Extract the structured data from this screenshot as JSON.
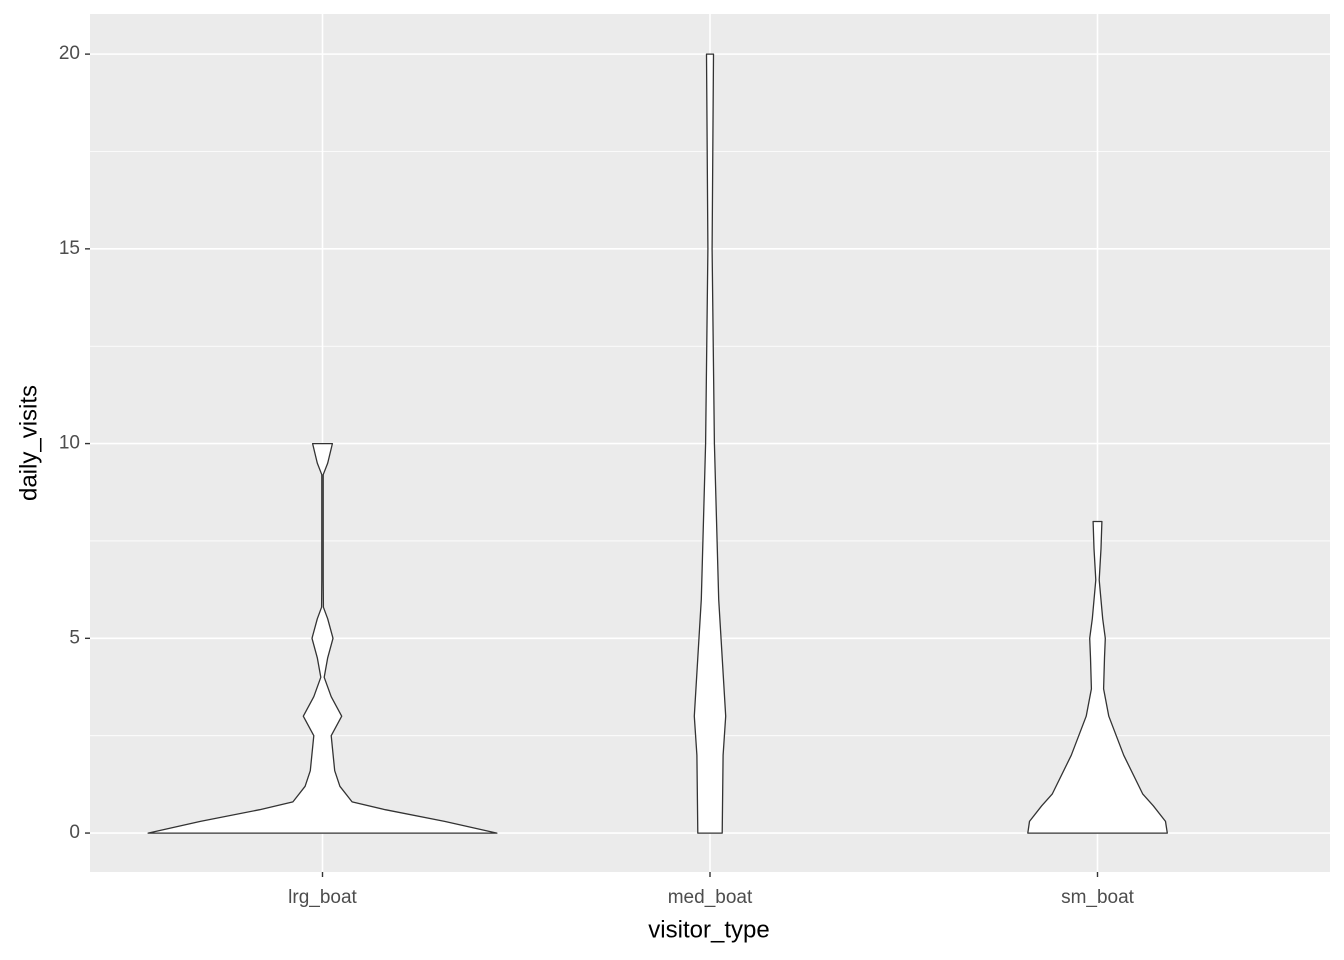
{
  "chart_data": {
    "type": "violin",
    "x_label": "visitor_type",
    "y_label": "daily_visits",
    "categories": [
      "lrg_boat",
      "med_boat",
      "sm_boat"
    ],
    "violins": [
      {
        "y": [
          0,
          0.3,
          0.6,
          0.8,
          1.2,
          1.6,
          2.5,
          3,
          3.5,
          4,
          4.5,
          5,
          5.5,
          5.8,
          6.5,
          9.2,
          9.5,
          10
        ],
        "width": [
          1.0,
          0.7,
          0.36,
          0.17,
          0.1,
          0.07,
          0.05,
          0.11,
          0.05,
          0.01,
          0.03,
          0.06,
          0.03,
          0.005,
          0.004,
          0.004,
          0.03,
          0.057
        ]
      },
      {
        "y": [
          0,
          2,
          3,
          6,
          10,
          15,
          20
        ],
        "width": [
          0.07,
          0.075,
          0.09,
          0.05,
          0.025,
          0.012,
          0.02
        ]
      },
      {
        "y": [
          0,
          0.3,
          0.7,
          1,
          2,
          3,
          3.7,
          4.5,
          5,
          5.5,
          6.5,
          7.3,
          8
        ],
        "width": [
          0.4,
          0.39,
          0.32,
          0.26,
          0.15,
          0.065,
          0.035,
          0.04,
          0.045,
          0.03,
          0.01,
          0.02,
          0.025
        ]
      }
    ],
    "fill": "#ffffff",
    "outline": "#333333",
    "ylim": [
      -1,
      21.03
    ],
    "yticks": [
      0,
      5,
      10,
      15,
      20
    ],
    "panel_color": "#ebebeb",
    "grid": true,
    "minor_grid": true
  }
}
